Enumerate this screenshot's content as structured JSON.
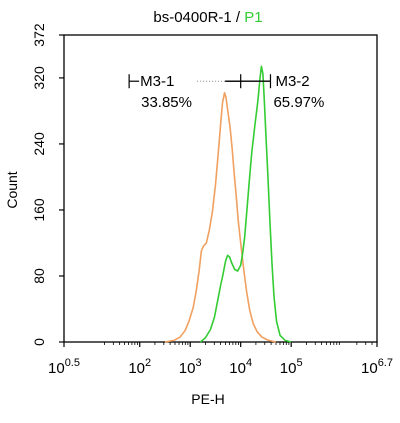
{
  "title": {
    "prefix": "bs-0400R-1 / ",
    "highlight": "P1",
    "highlight_color": "#33cc33"
  },
  "chart_data": {
    "type": "line",
    "xlabel": "PE-H",
    "ylabel": "Count",
    "x_scale": "log10",
    "xlim_log10": [
      0.5,
      6.7
    ],
    "ylim": [
      0,
      372
    ],
    "yticks": [
      0,
      80,
      160,
      240,
      320,
      372
    ],
    "xticks": [
      {
        "base": "10",
        "exp": "0.5",
        "value_log10": 0.5
      },
      {
        "base": "10",
        "exp": "2",
        "value_log10": 2
      },
      {
        "base": "10",
        "exp": "3",
        "value_log10": 3
      },
      {
        "base": "10",
        "exp": "4",
        "value_log10": 4
      },
      {
        "base": "10",
        "exp": "5",
        "value_log10": 5
      },
      {
        "base": "10",
        "exp": "6.7",
        "value_log10": 6.7
      }
    ],
    "series": [
      {
        "color": "#f0a060",
        "points": [
          [
            2.5,
            0
          ],
          [
            2.68,
            2
          ],
          [
            2.8,
            6
          ],
          [
            2.9,
            14
          ],
          [
            2.98,
            26
          ],
          [
            3.06,
            42
          ],
          [
            3.12,
            62
          ],
          [
            3.18,
            88
          ],
          [
            3.22,
            110
          ],
          [
            3.26,
            116
          ],
          [
            3.32,
            120
          ],
          [
            3.38,
            136
          ],
          [
            3.44,
            158
          ],
          [
            3.5,
            190
          ],
          [
            3.55,
            225
          ],
          [
            3.6,
            262
          ],
          [
            3.64,
            290
          ],
          [
            3.68,
            302
          ],
          [
            3.71,
            296
          ],
          [
            3.74,
            282
          ],
          [
            3.79,
            260
          ],
          [
            3.83,
            235
          ],
          [
            3.87,
            205
          ],
          [
            3.91,
            178
          ],
          [
            3.95,
            148
          ],
          [
            4.0,
            120
          ],
          [
            4.06,
            88
          ],
          [
            4.12,
            60
          ],
          [
            4.18,
            38
          ],
          [
            4.25,
            22
          ],
          [
            4.33,
            12
          ],
          [
            4.42,
            6
          ],
          [
            4.55,
            2
          ],
          [
            4.7,
            0
          ]
        ]
      },
      {
        "color": "#33cc33",
        "points": [
          [
            3.2,
            0
          ],
          [
            3.3,
            5
          ],
          [
            3.4,
            15
          ],
          [
            3.48,
            30
          ],
          [
            3.55,
            52
          ],
          [
            3.6,
            68
          ],
          [
            3.65,
            82
          ],
          [
            3.7,
            98
          ],
          [
            3.74,
            105
          ],
          [
            3.78,
            103
          ],
          [
            3.82,
            96
          ],
          [
            3.88,
            88
          ],
          [
            3.94,
            86
          ],
          [
            4.0,
            93
          ],
          [
            4.04,
            108
          ],
          [
            4.08,
            128
          ],
          [
            4.13,
            165
          ],
          [
            4.18,
            202
          ],
          [
            4.22,
            230
          ],
          [
            4.28,
            262
          ],
          [
            4.34,
            292
          ],
          [
            4.38,
            318
          ],
          [
            4.41,
            334
          ],
          [
            4.44,
            325
          ],
          [
            4.47,
            290
          ],
          [
            4.5,
            250
          ],
          [
            4.54,
            200
          ],
          [
            4.58,
            145
          ],
          [
            4.62,
            95
          ],
          [
            4.66,
            55
          ],
          [
            4.71,
            25
          ],
          [
            4.78,
            8
          ],
          [
            4.88,
            2
          ],
          [
            5.0,
            0
          ]
        ]
      }
    ],
    "markers": [
      {
        "name": "M3-1",
        "percent": "33.85%",
        "range_log10": [
          1.79,
          4.0
        ],
        "y": 316
      },
      {
        "name": "M3-2",
        "percent": "65.97%",
        "range_log10": [
          4.0,
          4.59
        ],
        "y": 316
      }
    ]
  }
}
